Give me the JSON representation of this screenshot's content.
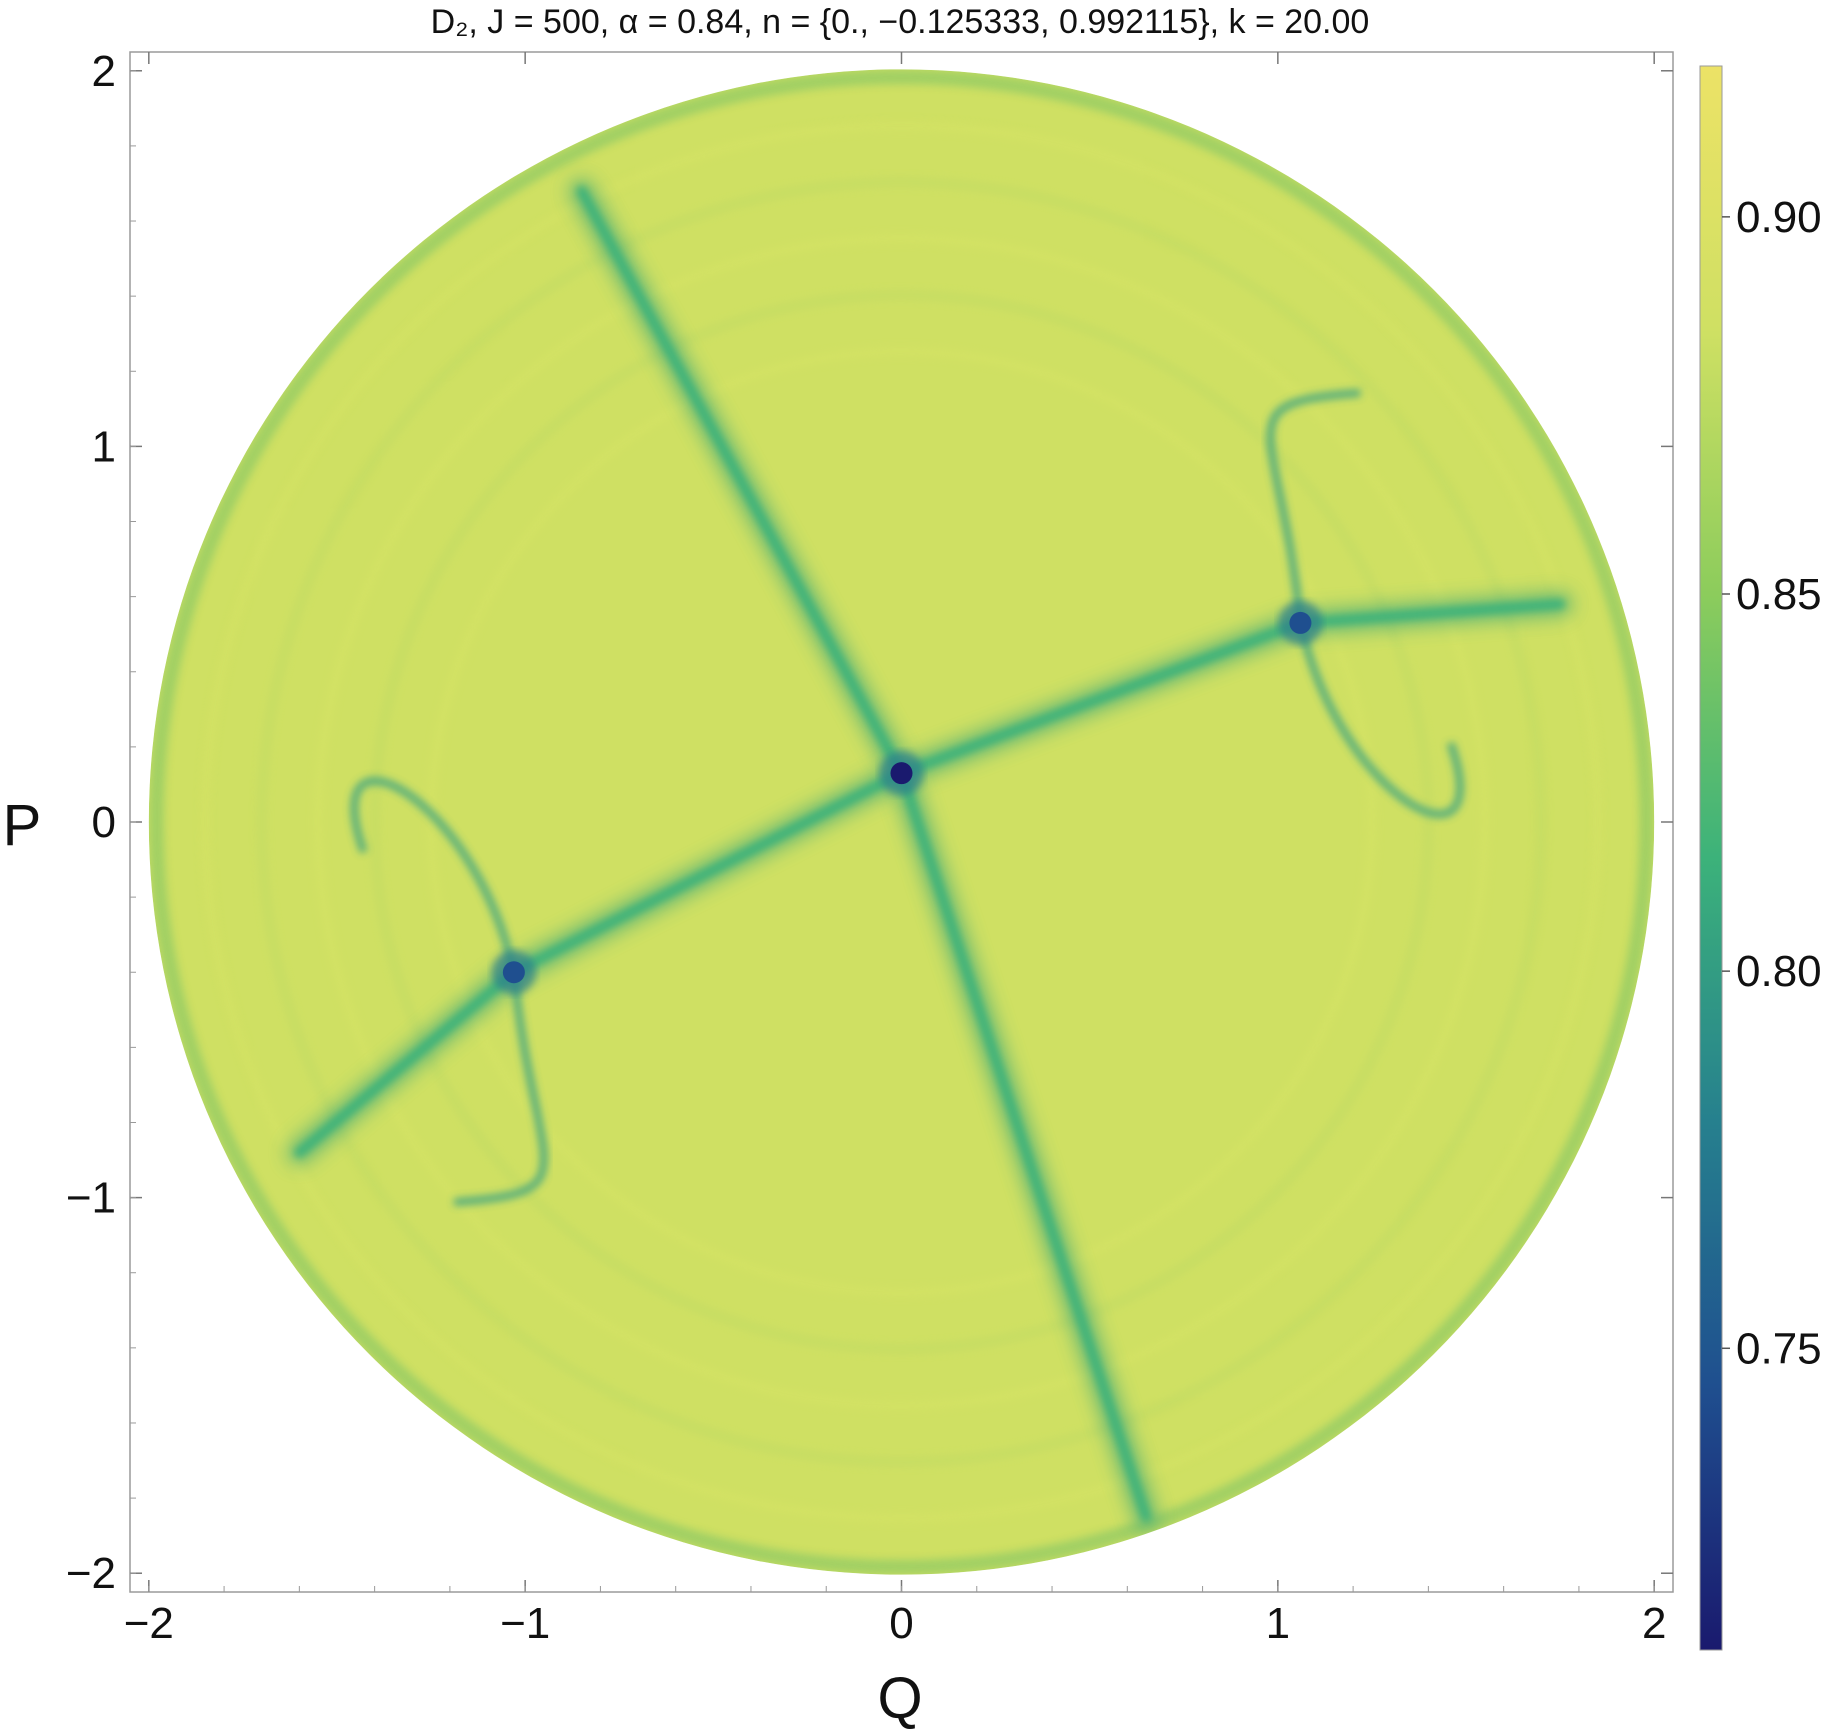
{
  "chart_data": {
    "type": "heatmap",
    "title": "D₂, J = 500, α = 0.84, n = {0., −0.125333, 0.992115}, k = 20.00",
    "xlabel": "Q",
    "ylabel": "P",
    "xlim": [
      -2.05,
      2.05
    ],
    "ylim": [
      -2.05,
      2.05
    ],
    "x_ticks": [
      -2,
      -1,
      0,
      1,
      2
    ],
    "x_tick_labels": [
      "−2",
      "−1",
      "0",
      "1",
      "2"
    ],
    "y_ticks": [
      -2,
      -1,
      0,
      1,
      2
    ],
    "y_tick_labels": [
      "−2",
      "−1",
      "0",
      "1",
      "2"
    ],
    "domain": "disk of radius 2 centered at origin",
    "colorbar": {
      "range": [
        0.71,
        0.92
      ],
      "ticks": [
        0.75,
        0.8,
        0.85,
        0.9
      ],
      "tick_labels": [
        "0.75",
        "0.80",
        "0.85",
        "0.90"
      ],
      "colormap": [
        "#1a1a6e",
        "#1f4f8f",
        "#26808e",
        "#3cb27a",
        "#8ccc5c",
        "#cfe063",
        "#ece266"
      ]
    },
    "features": {
      "background_value": 0.885,
      "minima": [
        {
          "name": "center",
          "q": 0.0,
          "p": 0.13,
          "value": 0.71
        },
        {
          "name": "right saddle",
          "q": 1.06,
          "p": 0.53,
          "value": 0.75
        },
        {
          "name": "left saddle",
          "q": -1.03,
          "p": -0.4,
          "value": 0.76
        }
      ],
      "separatrix_lines": [
        {
          "name": "steep line",
          "points": [
            [
              -0.85,
              1.68
            ],
            [
              0.0,
              0.13
            ],
            [
              0.65,
              -1.85
            ]
          ],
          "value": 0.81
        },
        {
          "name": "shallow line",
          "points": [
            [
              -1.6,
              -0.88
            ],
            [
              -1.03,
              -0.4
            ],
            [
              0.0,
              0.13
            ],
            [
              1.06,
              0.53
            ],
            [
              1.75,
              0.58
            ]
          ],
          "value": 0.81
        }
      ]
    }
  }
}
